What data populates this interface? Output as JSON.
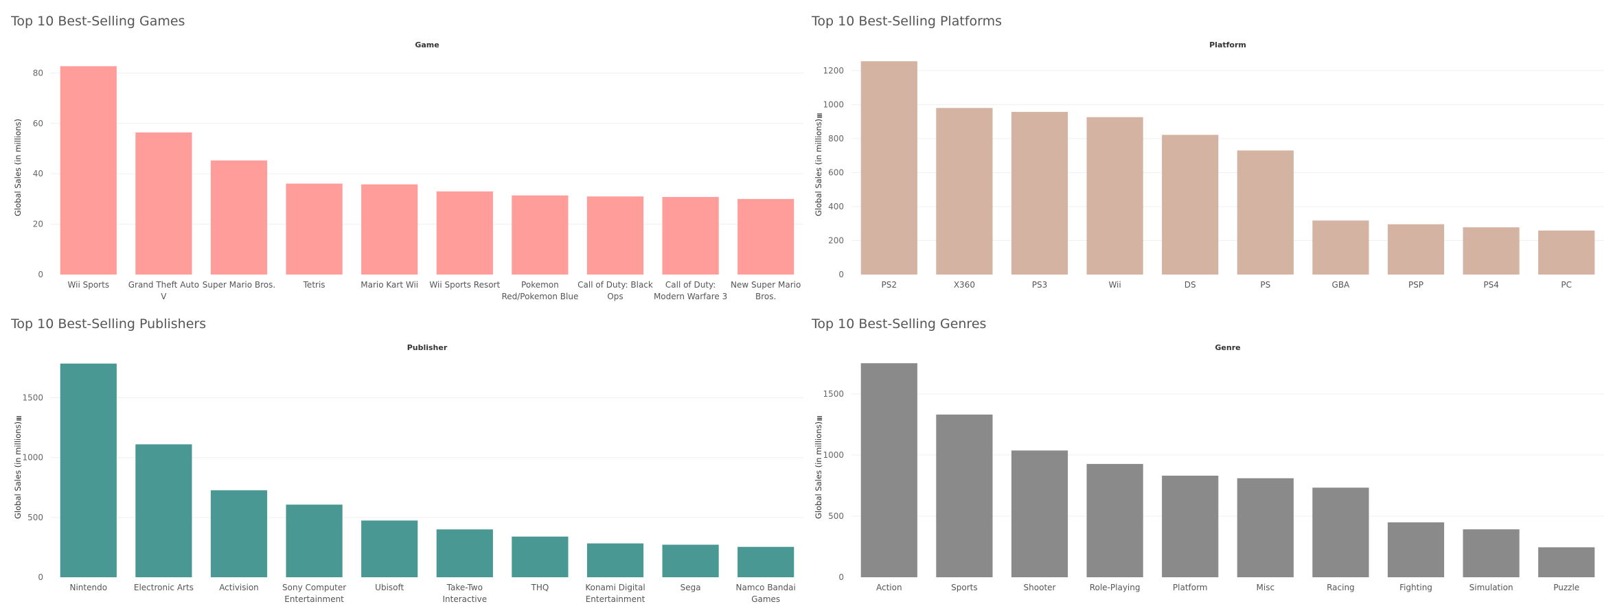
{
  "panels": [
    {
      "title": "Top 10 Best-Selling Games",
      "chart_data": {
        "type": "bar",
        "header": "Game",
        "ylabel": "Global Sales (in millions)",
        "color": "#ff9d9a",
        "ylim": [
          0,
          85
        ],
        "yticks": [
          0,
          20,
          40,
          60,
          80
        ],
        "categories": [
          "Wii Sports",
          "Grand Theft Auto V",
          "Super Mario Bros.",
          "Tetris",
          "Mario Kart Wii",
          "Wii Sports Resort",
          "Pokemon Red/Pokemon Blue",
          "Call of Duty: Black Ops",
          "Call of Duty: Modern Warfare 3",
          "New Super Mario Bros."
        ],
        "category_lines": [
          [
            "Wii Sports"
          ],
          [
            "Grand Theft Auto",
            "V"
          ],
          [
            "Super Mario Bros."
          ],
          [
            "Tetris"
          ],
          [
            "Mario Kart Wii"
          ],
          [
            "Wii Sports Resort"
          ],
          [
            "Pokemon",
            "Red/Pokemon Blue"
          ],
          [
            "Call of Duty: Black",
            "Ops"
          ],
          [
            "Call of Duty:",
            "Modern Warfare 3"
          ],
          [
            "New Super Mario",
            "Bros."
          ]
        ],
        "values": [
          82.7,
          56.4,
          45.3,
          36.1,
          35.8,
          33.0,
          31.4,
          31.0,
          30.8,
          30.0
        ],
        "sort_icon": false
      }
    },
    {
      "title": "Top 10 Best-Selling Platforms",
      "chart_data": {
        "type": "bar",
        "header": "Platform",
        "ylabel": "Global Sales (in millions)",
        "color": "#d4b3a3",
        "ylim": [
          0,
          1260
        ],
        "yticks": [
          0,
          200,
          400,
          600,
          800,
          1000,
          1200
        ],
        "categories": [
          "PS2",
          "X360",
          "PS3",
          "Wii",
          "DS",
          "PS",
          "GBA",
          "PSP",
          "PS4",
          "PC"
        ],
        "category_lines": [
          [
            "PS2"
          ],
          [
            "X360"
          ],
          [
            "PS3"
          ],
          [
            "Wii"
          ],
          [
            "DS"
          ],
          [
            "PS"
          ],
          [
            "GBA"
          ],
          [
            "PSP"
          ],
          [
            "PS4"
          ],
          [
            "PC"
          ]
        ],
        "values": [
          1255,
          980,
          957,
          926,
          822,
          730,
          318,
          296,
          278,
          259
        ],
        "sort_icon": true
      }
    },
    {
      "title": "Top 10 Best-Selling Publishers",
      "chart_data": {
        "type": "bar",
        "header": "Publisher",
        "ylabel": "Global Sales (in millions)",
        "color": "#499894",
        "ylim": [
          0,
          1790
        ],
        "yticks": [
          0,
          500,
          1000,
          1500
        ],
        "categories": [
          "Nintendo",
          "Electronic Arts",
          "Activision",
          "Sony Computer Entertainment",
          "Ubisoft",
          "Take-Two Interactive",
          "THQ",
          "Konami Digital Entertainment",
          "Sega",
          "Namco Bandai Games"
        ],
        "category_lines": [
          [
            "Nintendo"
          ],
          [
            "Electronic Arts"
          ],
          [
            "Activision"
          ],
          [
            "Sony Computer",
            "Entertainment"
          ],
          [
            "Ubisoft"
          ],
          [
            "Take-Two",
            "Interactive"
          ],
          [
            "THQ"
          ],
          [
            "Konami Digital",
            "Entertainment"
          ],
          [
            "Sega"
          ],
          [
            "Namco Bandai",
            "Games"
          ]
        ],
        "values": [
          1786,
          1111,
          727,
          607,
          474,
          400,
          340,
          283,
          272,
          254
        ],
        "sort_icon": true
      }
    },
    {
      "title": "Top 10 Best-Selling Genres",
      "chart_data": {
        "type": "bar",
        "header": "Genre",
        "ylabel": "Global Sales (in millions)",
        "color": "#8a8a8a",
        "ylim": [
          0,
          1752
        ],
        "yticks": [
          0,
          500,
          1000,
          1500
        ],
        "categories": [
          "Action",
          "Sports",
          "Shooter",
          "Role-Playing",
          "Platform",
          "Misc",
          "Racing",
          "Fighting",
          "Simulation",
          "Puzzle"
        ],
        "category_lines": [
          [
            "Action"
          ],
          [
            "Sports"
          ],
          [
            "Shooter"
          ],
          [
            "Role-Playing"
          ],
          [
            "Platform"
          ],
          [
            "Misc"
          ],
          [
            "Racing"
          ],
          [
            "Fighting"
          ],
          [
            "Simulation"
          ],
          [
            "Puzzle"
          ]
        ],
        "values": [
          1751,
          1331,
          1037,
          927,
          831,
          810,
          733,
          449,
          392,
          245
        ],
        "sort_icon": true
      }
    }
  ]
}
